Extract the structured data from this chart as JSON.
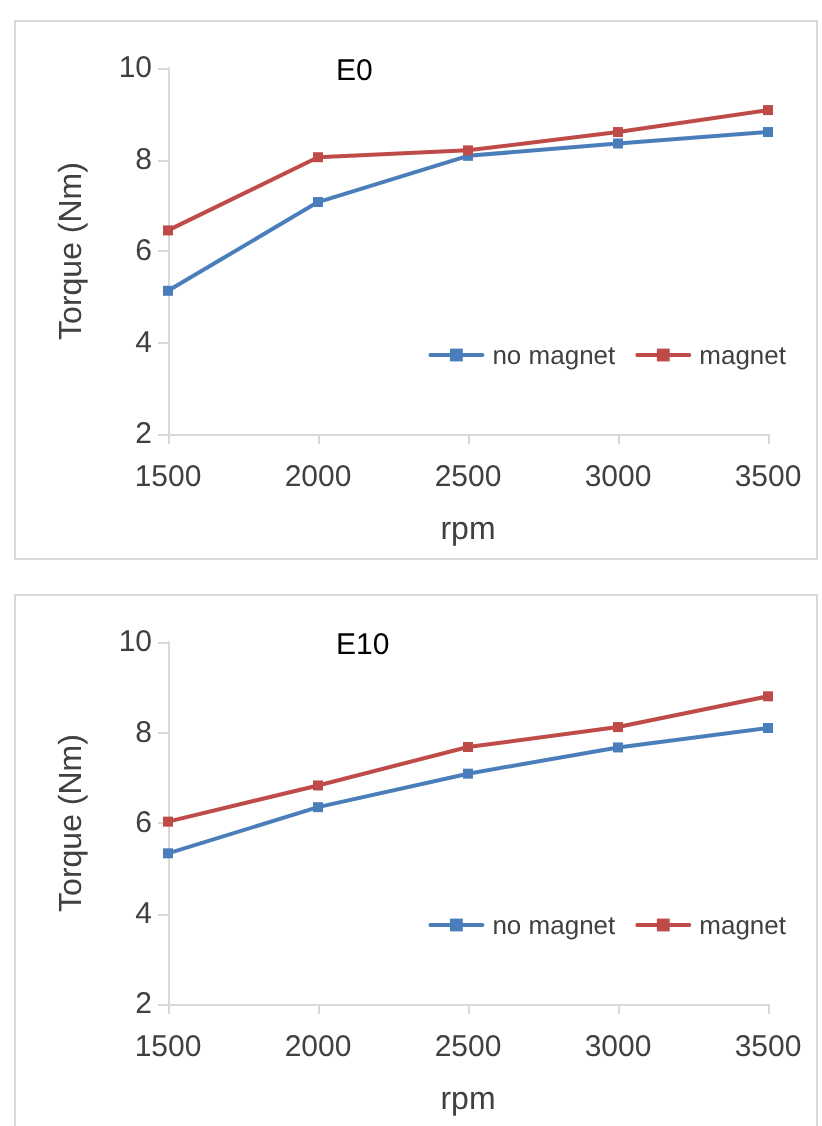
{
  "chart_data": [
    {
      "type": "line",
      "title": "E0",
      "xlabel": "rpm",
      "ylabel": "Torque (Nm)",
      "x": [
        1500,
        2000,
        2500,
        3000,
        3500
      ],
      "xlim": [
        1500,
        3500
      ],
      "xticks": [
        1500,
        2000,
        2500,
        3000,
        3500
      ],
      "ylim": [
        2,
        10
      ],
      "yticks": [
        2,
        4,
        6,
        8,
        10
      ],
      "grid": false,
      "legend": "bottom right",
      "marker": "square",
      "line_style": "solid",
      "series": [
        {
          "name": "no magnet",
          "color": "#4a7ebb",
          "values": [
            5.13,
            7.07,
            8.08,
            8.35,
            8.6
          ]
        },
        {
          "name": "magnet",
          "color": "#be4b48",
          "values": [
            6.45,
            8.05,
            8.2,
            8.6,
            9.08
          ]
        }
      ]
    },
    {
      "type": "line",
      "title": "E10",
      "xlabel": "rpm",
      "ylabel": "Torque (Nm)",
      "x": [
        1500,
        2000,
        2500,
        3000,
        3500
      ],
      "xlim": [
        1500,
        3500
      ],
      "xticks": [
        1500,
        2000,
        2500,
        3000,
        3500
      ],
      "ylim": [
        2,
        10
      ],
      "yticks": [
        2,
        4,
        6,
        8,
        10
      ],
      "grid": false,
      "legend": "bottom right",
      "marker": "square",
      "line_style": "solid",
      "series": [
        {
          "name": "no magnet",
          "color": "#4a7ebb",
          "values": [
            5.33,
            6.35,
            7.09,
            7.67,
            8.1
          ]
        },
        {
          "name": "magnet",
          "color": "#be4b48",
          "values": [
            6.03,
            6.83,
            7.68,
            8.12,
            8.8
          ]
        }
      ]
    }
  ]
}
